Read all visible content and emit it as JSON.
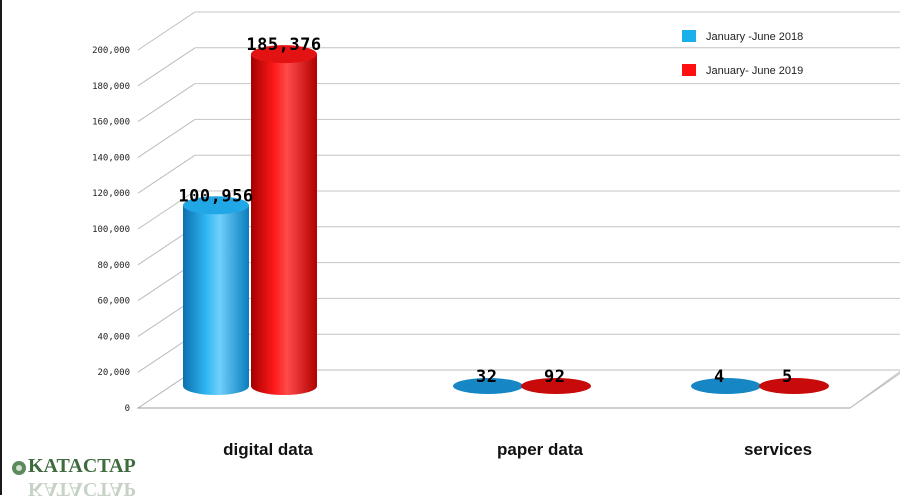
{
  "chart_data": {
    "type": "bar",
    "categories": [
      "digital  data",
      "paper data",
      "services"
    ],
    "series": [
      {
        "name": "January -June 2018",
        "values": [
          100956,
          32,
          4
        ],
        "labels": [
          "100,956",
          "32",
          "4"
        ],
        "color": "#1aa3e6"
      },
      {
        "name": "January- June 2019",
        "values": [
          185376,
          92,
          5
        ],
        "labels": [
          "185,376",
          "92",
          "5"
        ],
        "color": "#ee1111"
      }
    ],
    "ylim": [
      0,
      200000
    ],
    "yticks": [
      0,
      20000,
      40000,
      60000,
      80000,
      100000,
      120000,
      140000,
      160000,
      180000,
      200000
    ],
    "ytick_labels": [
      "0",
      "20,000",
      "40,000",
      "60,000",
      "80,000",
      "100,000",
      "120,000",
      "140,000",
      "160,000",
      "180,000",
      "200,000"
    ],
    "grid": true,
    "legend_position": "top-right",
    "style": "3d-cylinder"
  },
  "logo": {
    "text": "KATACTAP"
  }
}
